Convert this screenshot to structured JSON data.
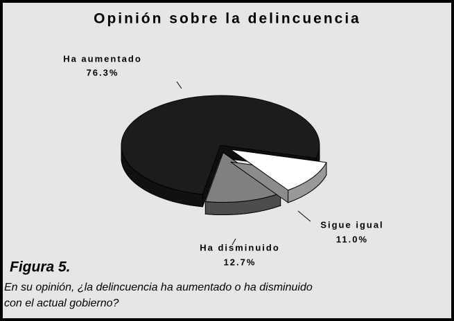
{
  "chart_data": {
    "type": "pie",
    "title": "Opinión sobre la delincuencia",
    "categories": [
      "Sigue igual",
      "Ha disminuido",
      "Ha aumentado"
    ],
    "values": [
      11.0,
      12.7,
      76.3
    ],
    "value_labels": [
      "11.0%",
      "12.7%",
      "76.3%"
    ],
    "colors": [
      "#ffffff",
      "#808080",
      "#1c1c1c"
    ]
  },
  "figure": {
    "label": "Figura 5.",
    "caption": [
      "En su opinión, ¿la delincuencia ha aumentado o ha disminuido",
      "con el actual gobierno?"
    ]
  }
}
